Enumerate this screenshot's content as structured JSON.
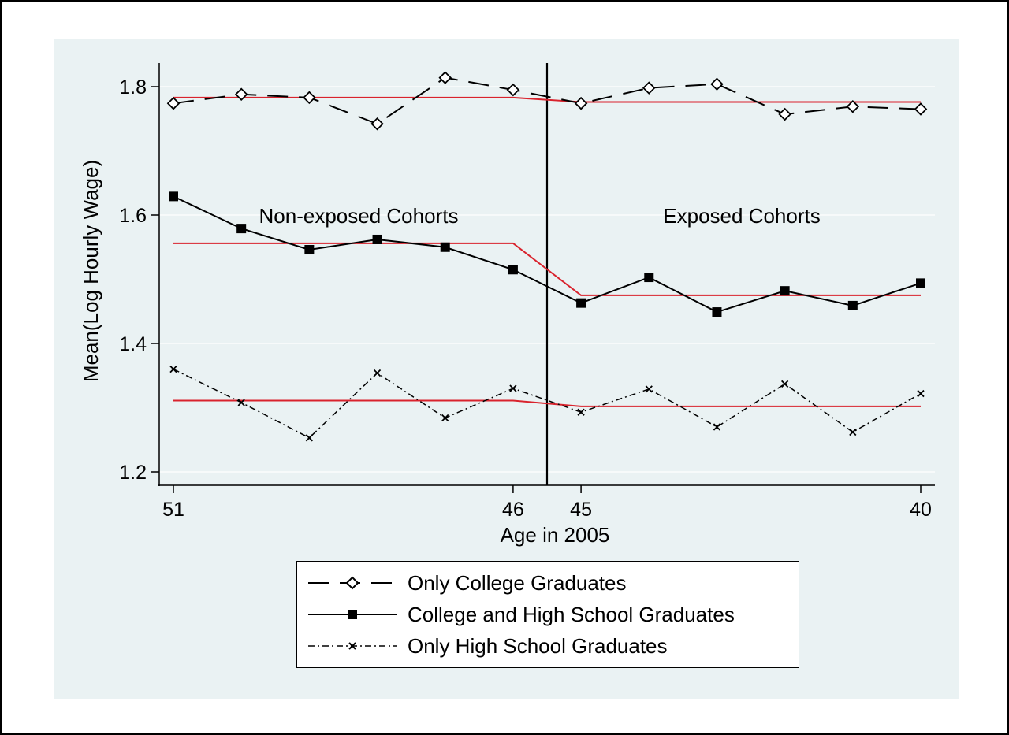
{
  "chart_data": {
    "type": "line",
    "xlabel": "Age in 2005",
    "ylabel": "Mean(Log Hourly Wage)",
    "ylim": [
      1.2,
      1.8
    ],
    "yticks": [
      1.2,
      1.4,
      1.6,
      1.8
    ],
    "x": [
      51,
      50,
      49,
      48,
      47,
      46,
      45,
      44,
      43,
      42,
      41,
      40
    ],
    "xticks": [
      51,
      46,
      45,
      40
    ],
    "cutoff": 45.5,
    "annotations": [
      "Non-exposed Cohorts",
      "Exposed Cohorts"
    ],
    "series": [
      {
        "name": "Only College Graduates",
        "style": "dashed",
        "marker": "diamond",
        "values": [
          1.774,
          1.788,
          1.783,
          1.742,
          1.814,
          1.795,
          1.774,
          1.798,
          1.804,
          1.757,
          1.769,
          1.765
        ],
        "fit": {
          "pre": 1.783,
          "post": 1.776
        }
      },
      {
        "name": "College and High School Graduates",
        "style": "solid",
        "marker": "square",
        "values": [
          1.629,
          1.579,
          1.546,
          1.562,
          1.55,
          1.515,
          1.463,
          1.503,
          1.449,
          1.482,
          1.459,
          1.494
        ],
        "fit": {
          "pre": 1.556,
          "post": 1.475
        }
      },
      {
        "name": "Only High School Graduates",
        "style": "dashdot",
        "marker": "x",
        "values": [
          1.36,
          1.308,
          1.253,
          1.354,
          1.284,
          1.33,
          1.293,
          1.329,
          1.27,
          1.337,
          1.262,
          1.322
        ],
        "fit": {
          "pre": 1.311,
          "post": 1.302
        }
      }
    ],
    "colors": {
      "data": "#000000",
      "fit": "#d9232d",
      "grid": "#ffffff",
      "background": "#eaf2f3"
    }
  }
}
